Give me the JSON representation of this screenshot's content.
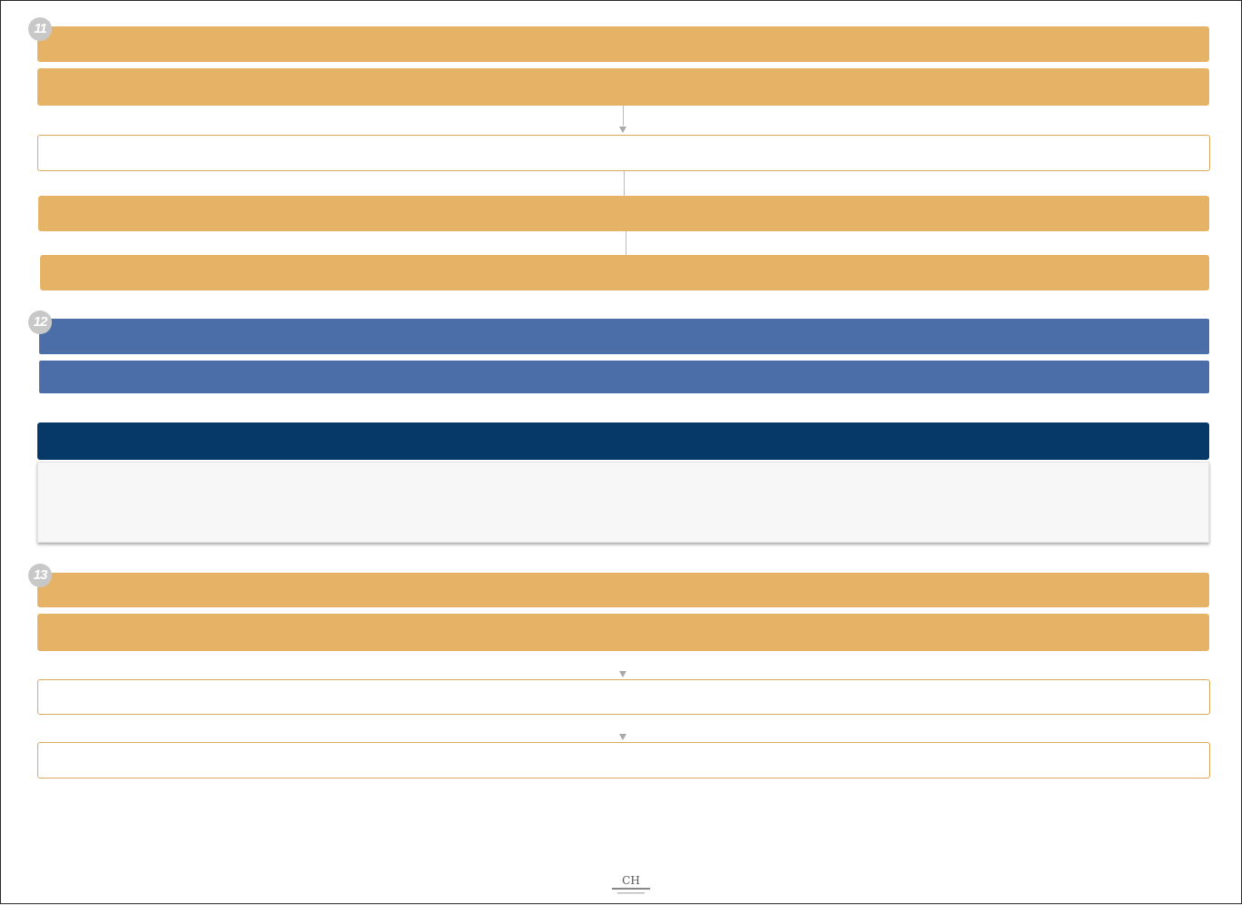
{
  "sections": [
    {
      "number": "11"
    },
    {
      "number": "12"
    },
    {
      "number": "13"
    }
  ],
  "colors": {
    "gold": "#e5b266",
    "blue": "#4c6ea8",
    "navy": "#063868",
    "panel": "#f7f7f7",
    "badge": "#c8c8c8"
  },
  "logo": {
    "icon": "ch-monogram-logo"
  }
}
